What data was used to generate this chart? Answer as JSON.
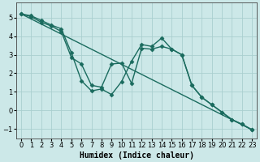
{
  "title": "",
  "xlabel": "Humidex (Indice chaleur)",
  "ylabel": "",
  "background_color": "#cce8e8",
  "line_color": "#1a6b5e",
  "grid_color": "#aacfcf",
  "line1_x": [
    0,
    1,
    2,
    3,
    4,
    5,
    6,
    7,
    8,
    9,
    10,
    11,
    12,
    13,
    14,
    15,
    16,
    17,
    18,
    19,
    20,
    21,
    22,
    23
  ],
  "line1_y": [
    5.2,
    5.1,
    4.85,
    4.6,
    4.4,
    3.1,
    1.6,
    1.05,
    1.15,
    0.85,
    1.55,
    2.65,
    3.55,
    3.45,
    3.9,
    3.3,
    3.0,
    1.35,
    0.7,
    0.3,
    -0.1,
    -0.5,
    -0.75,
    -1.05
  ],
  "line2_x": [
    0,
    1,
    2,
    3,
    4,
    5,
    6,
    7,
    8,
    9,
    10,
    11,
    12,
    13,
    14,
    15,
    16,
    17,
    18,
    19,
    20,
    21,
    22,
    23
  ],
  "line2_y": [
    5.2,
    5.05,
    4.75,
    4.55,
    4.25,
    2.85,
    2.5,
    1.35,
    1.25,
    2.5,
    2.55,
    1.45,
    3.35,
    3.3,
    3.45,
    3.3,
    3.0,
    1.35,
    0.7,
    0.3,
    -0.1,
    -0.5,
    -0.75,
    -1.05
  ],
  "trend_x": [
    0,
    23
  ],
  "trend_y": [
    5.2,
    -1.05
  ],
  "ylim": [
    -1.5,
    5.8
  ],
  "xlim": [
    -0.5,
    23.5
  ],
  "yticks": [
    -1,
    0,
    1,
    2,
    3,
    4,
    5
  ],
  "xticks": [
    0,
    1,
    2,
    3,
    4,
    5,
    6,
    7,
    8,
    9,
    10,
    11,
    12,
    13,
    14,
    15,
    16,
    17,
    18,
    19,
    20,
    21,
    22,
    23
  ],
  "marker": "D",
  "markersize": 2.5,
  "linewidth": 1.0,
  "xlabel_fontsize": 7,
  "tick_fontsize": 6
}
